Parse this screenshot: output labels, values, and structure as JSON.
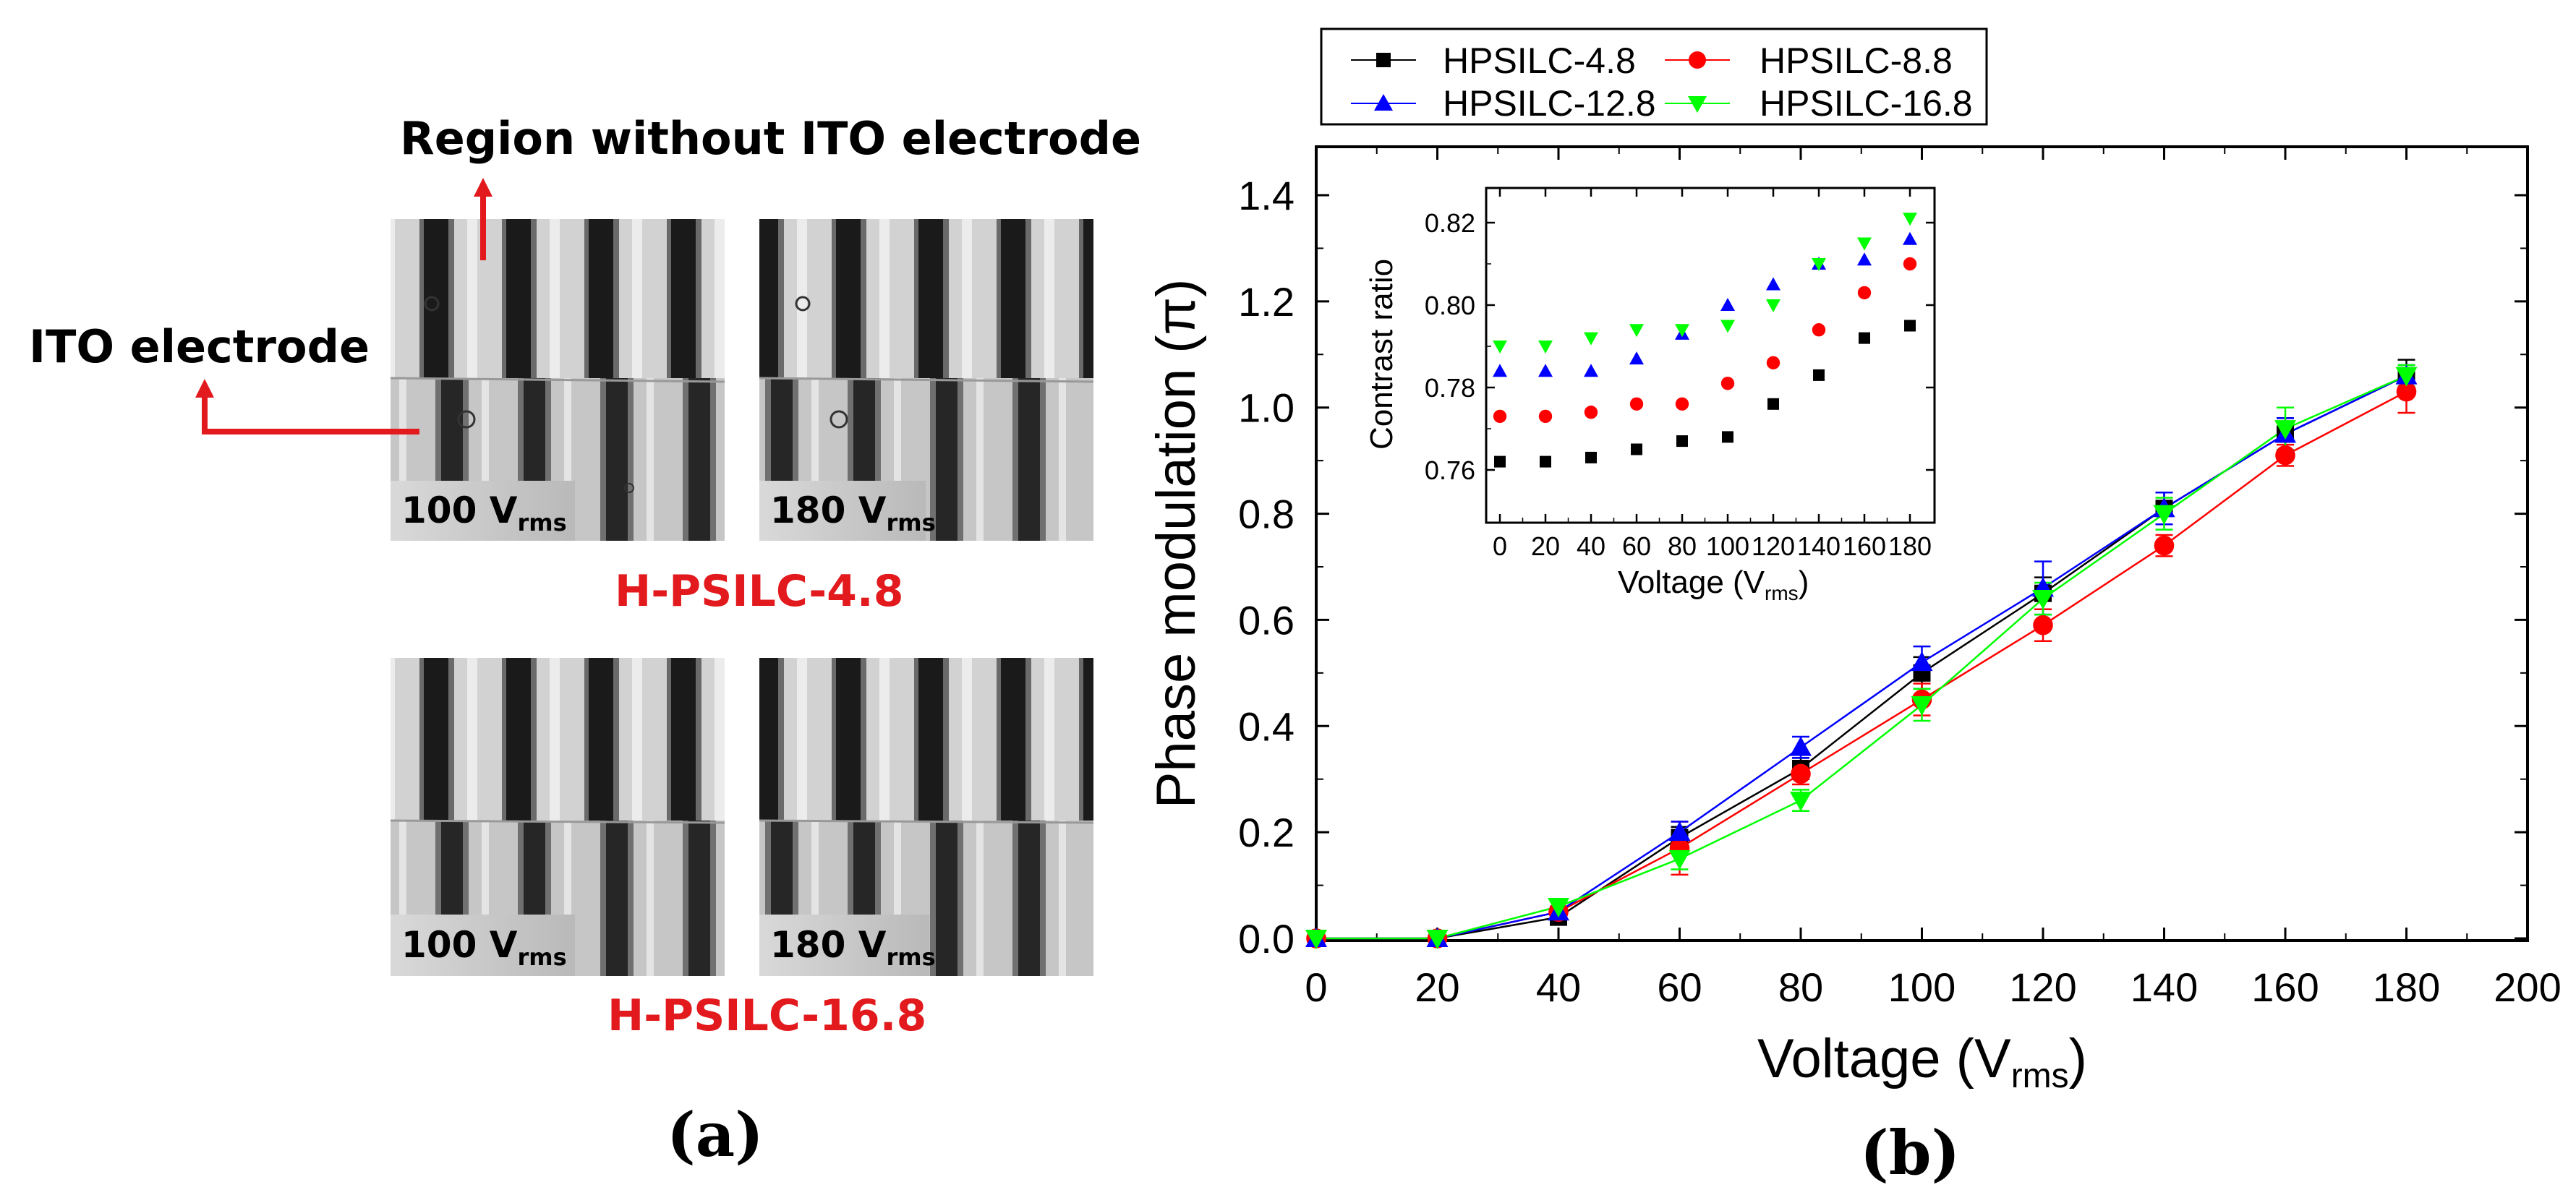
{
  "panel_a": {
    "label": "(a)",
    "annotation_top": "Region without ITO electrode",
    "annotation_left": "ITO electrode",
    "groups": [
      {
        "title": "H-PSILC-4.8",
        "images": [
          {
            "voltage": "100 V",
            "sub": "rms"
          },
          {
            "voltage": "180 V",
            "sub": "rms"
          }
        ]
      },
      {
        "title": "H-PSILC-16.8",
        "images": [
          {
            "voltage": "100 V",
            "sub": "rms"
          },
          {
            "voltage": "180 V",
            "sub": "rms"
          }
        ]
      }
    ]
  },
  "panel_b": {
    "label": "(b)"
  },
  "colors": {
    "black": "#000000",
    "red": "#ff0000",
    "blue": "#0000ff",
    "green": "#00ff00",
    "annotation_red": "#e2191d"
  },
  "chart_data": [
    {
      "type": "line",
      "title": "",
      "xlabel": "Voltage (V",
      "xlabel_sub": "rms",
      "xlabel_close": ")",
      "ylabel": "Phase modulation (π)",
      "xlim": [
        0,
        200
      ],
      "ylim": [
        0,
        1.5
      ],
      "xticks": [
        0,
        20,
        40,
        60,
        80,
        100,
        120,
        140,
        160,
        180,
        200
      ],
      "yticks": [
        0.0,
        0.2,
        0.4,
        0.6,
        0.8,
        1.0,
        1.2,
        1.4
      ],
      "ytick_labels": [
        "0.0",
        "0.2",
        "0.4",
        "0.6",
        "0.8",
        "1.0",
        "1.2",
        "1.4"
      ],
      "x": [
        0,
        20,
        40,
        60,
        80,
        100,
        120,
        140,
        160,
        180
      ],
      "legend_position": "top, outside plot",
      "series": [
        {
          "name": "HPSILC-4.8",
          "color": "#000000",
          "marker": "square",
          "values": [
            0.0,
            0.0,
            0.04,
            0.19,
            0.32,
            0.5,
            0.65,
            0.81,
            0.95,
            1.06
          ],
          "errors": [
            0.0,
            0.0,
            0.01,
            0.02,
            0.02,
            0.03,
            0.03,
            0.03,
            0.03,
            0.03
          ]
        },
        {
          "name": "HPSILC-8.8",
          "color": "#ff0000",
          "marker": "circle",
          "values": [
            0.0,
            0.0,
            0.05,
            0.17,
            0.31,
            0.45,
            0.59,
            0.74,
            0.91,
            1.03
          ],
          "errors": [
            0.0,
            0.0,
            0.01,
            0.05,
            0.02,
            0.03,
            0.03,
            0.02,
            0.02,
            0.04
          ]
        },
        {
          "name": "HPSILC-12.8",
          "color": "#0000ff",
          "marker": "triangle-up",
          "values": [
            0.0,
            0.0,
            0.05,
            0.2,
            0.36,
            0.52,
            0.66,
            0.81,
            0.95,
            1.06
          ],
          "errors": [
            0.0,
            0.0,
            0.01,
            0.02,
            0.02,
            0.03,
            0.05,
            0.03,
            0.03,
            0.02
          ]
        },
        {
          "name": "HPSILC-16.8",
          "color": "#00ff00",
          "marker": "triangle-down",
          "values": [
            0.0,
            0.0,
            0.06,
            0.15,
            0.26,
            0.44,
            0.64,
            0.8,
            0.96,
            1.06
          ],
          "errors": [
            0.0,
            0.0,
            0.01,
            0.02,
            0.02,
            0.03,
            0.03,
            0.03,
            0.04,
            0.02
          ]
        }
      ]
    },
    {
      "type": "scatter",
      "title": "",
      "xlabel": "Voltage (V",
      "xlabel_sub": "rms",
      "xlabel_close": ")",
      "ylabel": "Contrast ratio",
      "xlim": [
        -5,
        185
      ],
      "ylim": [
        0.75,
        0.825
      ],
      "xticks": [
        0,
        20,
        40,
        60,
        80,
        100,
        120,
        140,
        160,
        180
      ],
      "yticks": [
        0.76,
        0.78,
        0.8,
        0.82
      ],
      "ytick_labels": [
        "0.76",
        "0.78",
        "0.80",
        "0.82"
      ],
      "x": [
        0,
        20,
        40,
        60,
        80,
        100,
        120,
        140,
        160,
        180
      ],
      "series": [
        {
          "name": "HPSILC-4.8",
          "color": "#000000",
          "marker": "square",
          "values": [
            0.762,
            0.762,
            0.763,
            0.765,
            0.767,
            0.768,
            0.776,
            0.783,
            0.792,
            0.795
          ]
        },
        {
          "name": "HPSILC-8.8",
          "color": "#ff0000",
          "marker": "circle",
          "values": [
            0.773,
            0.773,
            0.774,
            0.776,
            0.776,
            0.781,
            0.786,
            0.794,
            0.803,
            0.81
          ]
        },
        {
          "name": "HPSILC-12.8",
          "color": "#0000ff",
          "marker": "triangle-up",
          "values": [
            0.784,
            0.784,
            0.784,
            0.787,
            0.793,
            0.8,
            0.805,
            0.81,
            0.811,
            0.816
          ]
        },
        {
          "name": "HPSILC-16.8",
          "color": "#00ff00",
          "marker": "triangle-down",
          "values": [
            0.79,
            0.79,
            0.792,
            0.794,
            0.794,
            0.795,
            0.8,
            0.81,
            0.815,
            0.821
          ]
        }
      ]
    }
  ]
}
